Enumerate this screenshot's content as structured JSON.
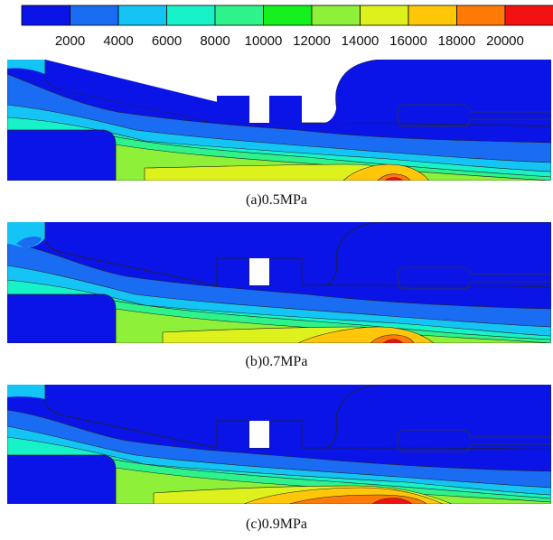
{
  "legend": {
    "colors": [
      "#0a14e6",
      "#1a6cf2",
      "#14c4f4",
      "#18f2c8",
      "#2ef28a",
      "#14f01e",
      "#8ef038",
      "#ddf21c",
      "#ffc60a",
      "#ff7a06",
      "#f21212"
    ],
    "ticks": [
      "2000",
      "4000",
      "6000",
      "8000",
      "10000",
      "12000",
      "14000",
      "16000",
      "18000",
      "20000"
    ]
  },
  "panels": [
    {
      "caption": "(a)0.5MPa"
    },
    {
      "caption": "(b)0.7MPa"
    },
    {
      "caption": "(c)0.9MPa"
    }
  ]
}
